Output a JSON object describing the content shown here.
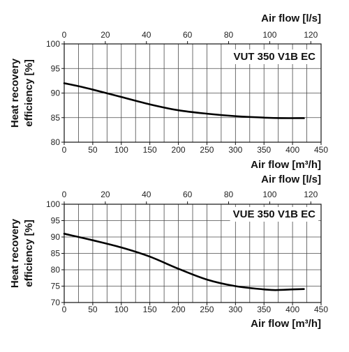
{
  "colors": {
    "curve": "#000000",
    "grid": "#4a4a4a",
    "text": "#111111",
    "background": "#ffffff"
  },
  "chart_data": [
    {
      "type": "line",
      "title": "VUT 350 V1B EC",
      "xlabel": "Air flow [m³/h]",
      "x2label": "Air flow [l/s]",
      "ylabel_lines": [
        "Heat recovery",
        "efficiency [%]"
      ],
      "xlim": [
        0,
        450
      ],
      "ylim": [
        80,
        100
      ],
      "x2lim": [
        0,
        125
      ],
      "xticks": [
        0,
        50,
        100,
        150,
        200,
        250,
        300,
        350,
        400,
        450
      ],
      "yticks": [
        80,
        85,
        90,
        95,
        100
      ],
      "x2ticks": [
        0,
        20,
        40,
        60,
        80,
        100,
        120
      ],
      "grid": true,
      "series": [
        {
          "x": [
            0,
            25,
            50,
            100,
            150,
            200,
            250,
            300,
            350,
            380,
            420
          ],
          "y": [
            92,
            91.4,
            90.7,
            89.2,
            87.7,
            86.5,
            85.8,
            85.3,
            85.0,
            84.9,
            84.9
          ]
        }
      ]
    },
    {
      "type": "line",
      "title": "VUE 350 V1B EC",
      "xlabel": "Air flow [m³/h]",
      "x2label": "Air flow [l/s]",
      "ylabel_lines": [
        "Heat recovery",
        "efficiency [%]"
      ],
      "xlim": [
        0,
        450
      ],
      "ylim": [
        70,
        100
      ],
      "x2lim": [
        0,
        125
      ],
      "xticks": [
        0,
        50,
        100,
        150,
        200,
        250,
        300,
        350,
        400,
        450
      ],
      "yticks": [
        70,
        75,
        80,
        85,
        90,
        95,
        100
      ],
      "x2ticks": [
        0,
        20,
        40,
        60,
        80,
        100,
        120
      ],
      "grid": true,
      "series": [
        {
          "x": [
            0,
            50,
            100,
            150,
            200,
            250,
            300,
            350,
            370,
            400,
            420
          ],
          "y": [
            91,
            89,
            86.8,
            84,
            80.3,
            77,
            75,
            74,
            73.8,
            74,
            74.1
          ]
        }
      ]
    }
  ]
}
